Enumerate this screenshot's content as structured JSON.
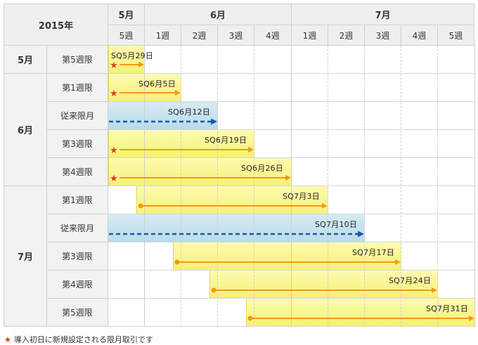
{
  "header": {
    "year": "2015年",
    "months": [
      "5月",
      "6月",
      "7月"
    ],
    "weeks": [
      "5週",
      "1週",
      "2週",
      "3週",
      "4週",
      "1週",
      "2週",
      "3週",
      "4週",
      "5週"
    ]
  },
  "groups": [
    "5月",
    "6月",
    "7月"
  ],
  "rows": [
    {
      "label": "第5週限",
      "sq": "SQ5月29日",
      "type": "new"
    },
    {
      "label": "第1週限",
      "sq": "SQ6月5日",
      "type": "new"
    },
    {
      "label": "従来限月",
      "sq": "SQ6月12日",
      "type": "standard"
    },
    {
      "label": "第3週限",
      "sq": "SQ6月19日",
      "type": "new"
    },
    {
      "label": "第4週限",
      "sq": "SQ6月26日",
      "type": "new"
    },
    {
      "label": "第1週限",
      "sq": "SQ7月3日",
      "type": "weekly"
    },
    {
      "label": "従来限月",
      "sq": "SQ7月10日",
      "type": "standard"
    },
    {
      "label": "第3週限",
      "sq": "SQ7月17日",
      "type": "weekly"
    },
    {
      "label": "第4週限",
      "sq": "SQ7月24日",
      "type": "weekly"
    },
    {
      "label": "第5週限",
      "sq": "SQ7月31日",
      "type": "weekly"
    }
  ],
  "footnote": "導入初日に新規設定される限月取引です",
  "colors": {
    "arrow": "#f39a16",
    "standard_arrow": "#1a5aa6",
    "star": "#e03a1e"
  }
}
